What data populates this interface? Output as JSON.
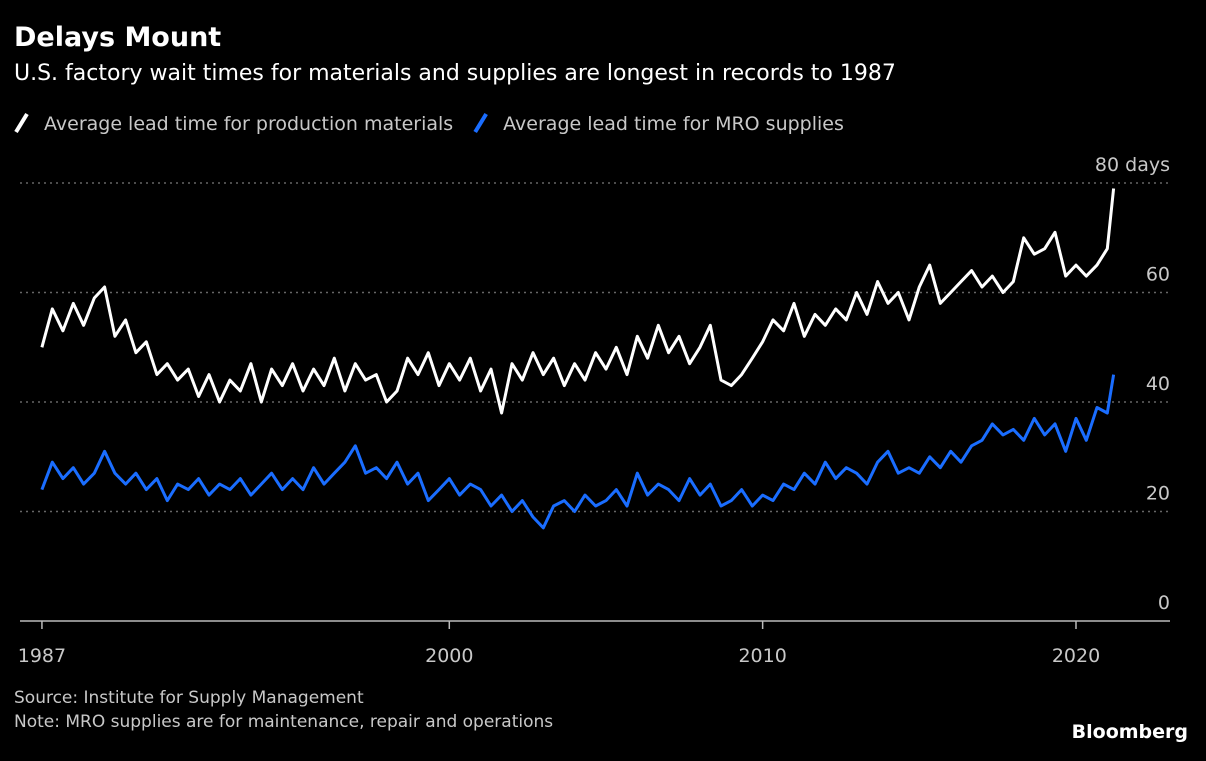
{
  "chart_data": {
    "type": "line",
    "title": "Delays Mount",
    "subtitle": "U.S. factory wait times for materials and supplies are longest in records to 1987",
    "source": "Source: Institute for Supply Management",
    "note": "Note: MRO supplies are for maintenance, repair and operations",
    "brand": "Bloomberg",
    "x": [
      1987,
      1987.33,
      1987.67,
      1988,
      1988.33,
      1988.67,
      1989,
      1989.33,
      1989.67,
      1990,
      1990.33,
      1990.67,
      1991,
      1991.33,
      1991.67,
      1992,
      1992.33,
      1992.67,
      1993,
      1993.33,
      1993.67,
      1994,
      1994.33,
      1994.67,
      1995,
      1995.33,
      1995.67,
      1996,
      1996.33,
      1996.67,
      1997,
      1997.33,
      1997.67,
      1998,
      1998.33,
      1998.67,
      1999,
      1999.33,
      1999.67,
      2000,
      2000.33,
      2000.67,
      2001,
      2001.33,
      2001.67,
      2002,
      2002.33,
      2002.67,
      2003,
      2003.33,
      2003.67,
      2004,
      2004.33,
      2004.67,
      2005,
      2005.33,
      2005.67,
      2006,
      2006.33,
      2006.67,
      2007,
      2007.33,
      2007.67,
      2008,
      2008.33,
      2008.67,
      2009,
      2009.33,
      2009.67,
      2010,
      2010.33,
      2010.67,
      2011,
      2011.33,
      2011.67,
      2012,
      2012.33,
      2012.67,
      2013,
      2013.33,
      2013.67,
      2014,
      2014.33,
      2014.67,
      2015,
      2015.33,
      2015.67,
      2016,
      2016.33,
      2016.67,
      2017,
      2017.33,
      2017.67,
      2018,
      2018.33,
      2018.67,
      2019,
      2019.33,
      2019.67,
      2020,
      2020.33,
      2020.67,
      2021,
      2021.2
    ],
    "series": [
      {
        "name": "Average lead time for production materials",
        "color": "#ffffff",
        "values": [
          50,
          57,
          53,
          58,
          54,
          59,
          61,
          52,
          55,
          49,
          51,
          45,
          47,
          44,
          46,
          41,
          45,
          40,
          44,
          42,
          47,
          40,
          46,
          43,
          47,
          42,
          46,
          43,
          48,
          42,
          47,
          44,
          45,
          40,
          42,
          48,
          45,
          49,
          43,
          47,
          44,
          48,
          42,
          46,
          38,
          47,
          44,
          49,
          45,
          48,
          43,
          47,
          44,
          49,
          46,
          50,
          45,
          52,
          48,
          54,
          49,
          52,
          47,
          50,
          54,
          44,
          43,
          45,
          48,
          51,
          55,
          53,
          58,
          52,
          56,
          54,
          57,
          55,
          60,
          56,
          62,
          58,
          60,
          55,
          61,
          65,
          58,
          60,
          62,
          64,
          61,
          63,
          60,
          62,
          70,
          67,
          68,
          71,
          63,
          65,
          63,
          65,
          68,
          79
        ]
      },
      {
        "name": "Average lead time for MRO supplies",
        "color": "#1a6dff",
        "values": [
          24,
          29,
          26,
          28,
          25,
          27,
          31,
          27,
          25,
          27,
          24,
          26,
          22,
          25,
          24,
          26,
          23,
          25,
          24,
          26,
          23,
          25,
          27,
          24,
          26,
          24,
          28,
          25,
          27,
          29,
          32,
          27,
          28,
          26,
          29,
          25,
          27,
          22,
          24,
          26,
          23,
          25,
          24,
          21,
          23,
          20,
          22,
          19,
          17,
          21,
          22,
          20,
          23,
          21,
          22,
          24,
          21,
          27,
          23,
          25,
          24,
          22,
          26,
          23,
          25,
          21,
          22,
          24,
          21,
          23,
          22,
          25,
          24,
          27,
          25,
          29,
          26,
          28,
          27,
          25,
          29,
          31,
          27,
          28,
          27,
          30,
          28,
          31,
          29,
          32,
          33,
          36,
          34,
          35,
          33,
          37,
          34,
          36,
          31,
          37,
          33,
          39,
          38,
          45
        ]
      }
    ],
    "xlim": [
      1986.3,
      2023
    ],
    "xticks": [
      1987,
      2000,
      2010,
      2020
    ],
    "ylim": [
      0,
      80
    ],
    "yticks": [
      0,
      20,
      40,
      60,
      {
        "value": 80,
        "label": "80 days"
      }
    ],
    "grid": true,
    "legend": "top-left"
  }
}
